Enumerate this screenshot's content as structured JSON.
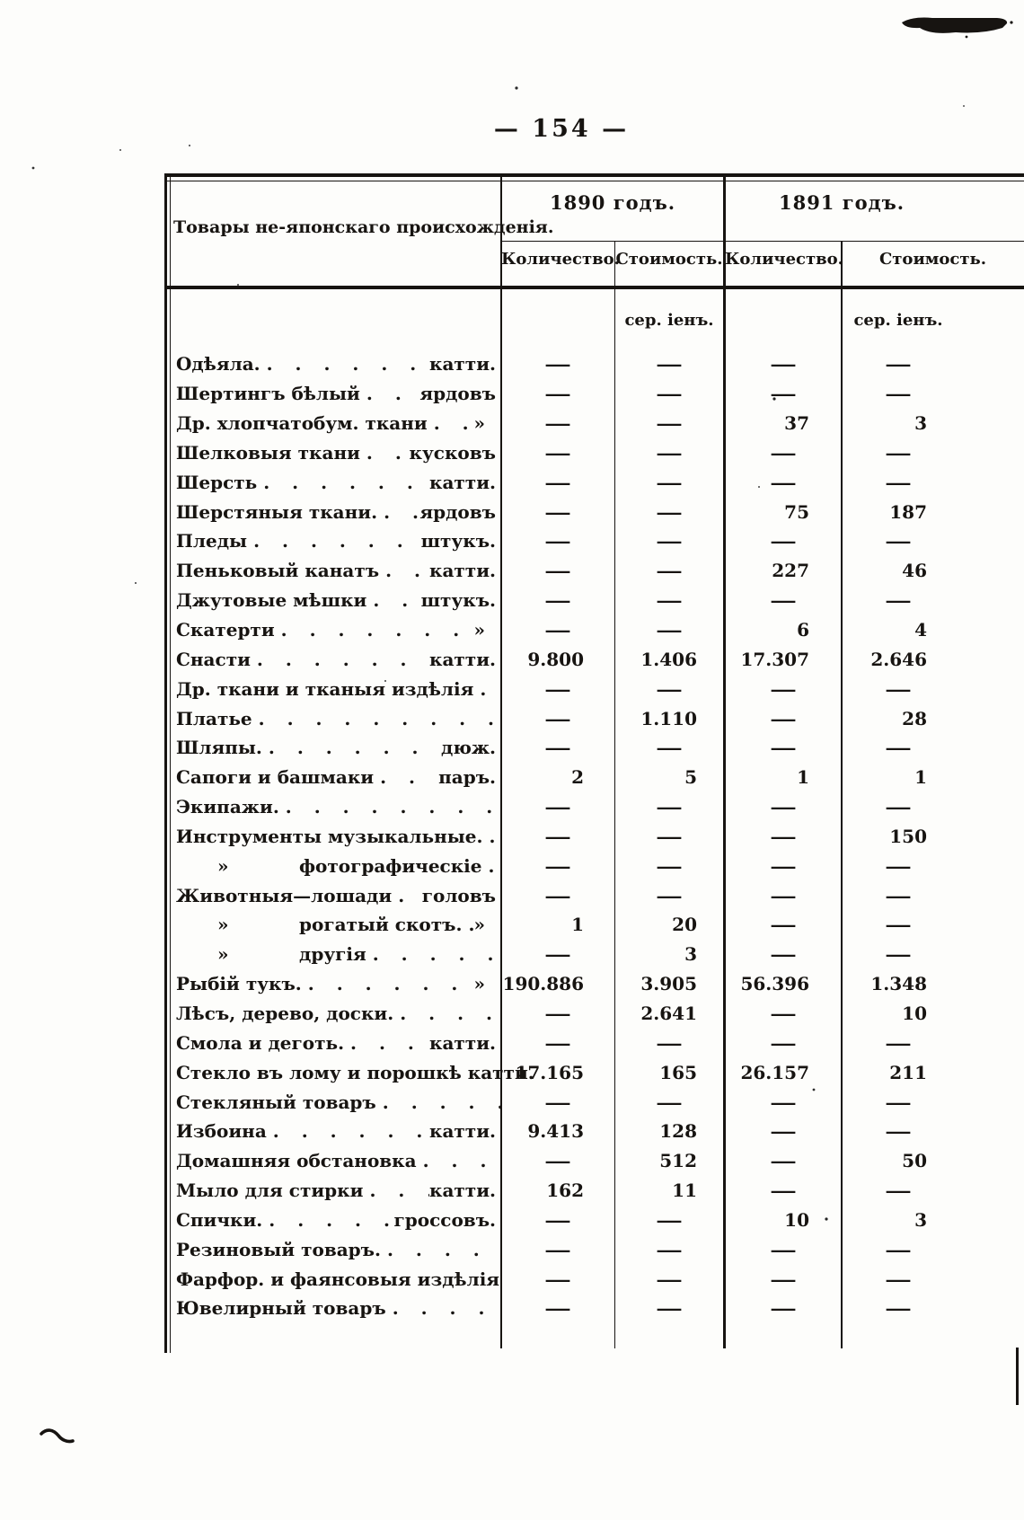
{
  "page": {
    "number": "— 154 —"
  },
  "colors": {
    "ink": "#171411",
    "paper": "#fdfdfb"
  },
  "table": {
    "title": "Товары не-японскаго происхожденія.",
    "col_groups": [
      {
        "year": "1890 годъ.",
        "columns": [
          "Количество.",
          "Стоимость."
        ]
      },
      {
        "year": "1891 годъ.",
        "columns": [
          "Количество.",
          "Стоимость."
        ]
      }
    ],
    "currency_note": "сер. іенъ.",
    "dash": "—",
    "leader_glyph": ". ",
    "rows": [
      {
        "label": "Одѣяла.",
        "dots": 10,
        "unit": "катти.",
        "values": [
          "—",
          "—",
          "—",
          "—"
        ]
      },
      {
        "label": "Шертингъ бѣлый",
        "dots": 6,
        "unit": "ярдовъ",
        "values": [
          "—",
          "—",
          "—",
          "—"
        ]
      },
      {
        "label": "Др. хлопчатобум. ткани",
        "dots": 4,
        "unit": "»",
        "values": [
          "—",
          "—",
          "37",
          "3"
        ]
      },
      {
        "label": "Шелковыя ткани",
        "dots": 7,
        "unit": "кусковъ",
        "values": [
          "—",
          "—",
          "—",
          "—"
        ]
      },
      {
        "label": "Шерсть",
        "dots": 10,
        "unit": "катти.",
        "values": [
          "—",
          "—",
          "—",
          "—"
        ]
      },
      {
        "label": "Шерстяныя ткани.",
        "dots": 7,
        "unit": "ярдовъ",
        "values": [
          "—",
          "—",
          "75",
          "187"
        ]
      },
      {
        "label": "Пледы",
        "dots": 11,
        "unit": "штукъ.",
        "values": [
          "—",
          "—",
          "—",
          "—"
        ]
      },
      {
        "label": "Пеньковый канатъ",
        "dots": 5,
        "unit": "катти.",
        "values": [
          "—",
          "—",
          "227",
          "46"
        ]
      },
      {
        "label": "Джутовые мѣшки",
        "dots": 7,
        "unit": "штукъ.",
        "values": [
          "—",
          "—",
          "—",
          "—"
        ]
      },
      {
        "label": "Скатерти",
        "dots": 10,
        "unit": "»",
        "values": [
          "—",
          "—",
          "6",
          "4"
        ]
      },
      {
        "label": "Снасти",
        "dots": 10,
        "unit": "катти.",
        "values": [
          "9.800",
          "1.406",
          "17.307",
          "2.646"
        ]
      },
      {
        "label": "Др. ткани и тканыя издѣлія",
        "dots": 6,
        "unit": "",
        "values": [
          "—",
          "—",
          "—",
          "—"
        ]
      },
      {
        "label": "Платье",
        "dots": 13,
        "unit": "",
        "values": [
          "—",
          "1.110",
          "—",
          "28"
        ]
      },
      {
        "label": "Шляпы.",
        "dots": 11,
        "unit": "дюж.",
        "values": [
          "—",
          "—",
          "—",
          "—"
        ]
      },
      {
        "label": "Сапоги и башмаки",
        "dots": 6,
        "unit": "паръ.",
        "values": [
          "2",
          "5",
          "1",
          "1"
        ]
      },
      {
        "label": "Экипажи.",
        "dots": 13,
        "unit": "",
        "values": [
          "—",
          "—",
          "—",
          "—"
        ]
      },
      {
        "label": "Инструменты музыкальные.",
        "dots": 6,
        "unit": "",
        "values": [
          "—",
          "—",
          "—",
          "150"
        ]
      },
      {
        "prefix": "»",
        "label": "фотографическіе",
        "dots": 3,
        "unit": "",
        "values": [
          "—",
          "—",
          "—",
          "—"
        ]
      },
      {
        "label": "Животныя—лошади",
        "dots": 6,
        "unit": "головъ",
        "values": [
          "—",
          "—",
          "—",
          "—"
        ]
      },
      {
        "prefix": "»",
        "label": "рогатый скотъ.",
        "dots": 4,
        "unit": "»",
        "values": [
          "1",
          "20",
          "—",
          "—"
        ]
      },
      {
        "prefix": "»",
        "label": "другія",
        "dots": 8,
        "unit": "",
        "values": [
          "—",
          "3",
          "—",
          "—"
        ]
      },
      {
        "label": "Рыбій тукъ.",
        "dots": 9,
        "unit": "»",
        "values": [
          "190.886",
          "3.905",
          "56.396",
          "1.348"
        ]
      },
      {
        "label": "Лѣсъ, дерево, доски.",
        "dots": 10,
        "unit": "",
        "values": [
          "—",
          "2.641",
          "—",
          "10"
        ]
      },
      {
        "label": "Смола и деготь.",
        "dots": 8,
        "unit": "катти.",
        "values": [
          "—",
          "—",
          "—",
          "—"
        ]
      },
      {
        "label": "Стекло въ лому и порошкѣ",
        "dots": 2,
        "unit": "катти.",
        "values": [
          "17.165",
          "165",
          "26.157",
          "211"
        ]
      },
      {
        "label": "Стекляный товаръ",
        "dots": 9,
        "unit": "",
        "values": [
          "—",
          "—",
          "—",
          "—"
        ]
      },
      {
        "label": "Избоина",
        "dots": 10,
        "unit": "катти.",
        "values": [
          "9.413",
          "128",
          "—",
          "—"
        ]
      },
      {
        "label": "Домашняя обстановка",
        "dots": 7,
        "unit": "",
        "values": [
          "—",
          "512",
          "—",
          "50"
        ]
      },
      {
        "label": "Мыло для стирки",
        "dots": 7,
        "unit": "катти.",
        "values": [
          "162",
          "11",
          "—",
          "—"
        ]
      },
      {
        "label": "Спички.",
        "dots": 10,
        "unit": "гроссовъ.",
        "values": [
          "—",
          "—",
          "10",
          "3"
        ]
      },
      {
        "label": "Резиновый товаръ.",
        "dots": 10,
        "unit": "",
        "values": [
          "—",
          "—",
          "—",
          "—"
        ]
      },
      {
        "label": "Фарфор. и фаянсовыя издѣлія",
        "dots": 4,
        "unit": "",
        "values": [
          "—",
          "—",
          "—",
          "—"
        ]
      },
      {
        "label": "Ювелирный товаръ",
        "dots": 9,
        "unit": "",
        "values": [
          "—",
          "—",
          "—",
          "—"
        ]
      }
    ]
  }
}
